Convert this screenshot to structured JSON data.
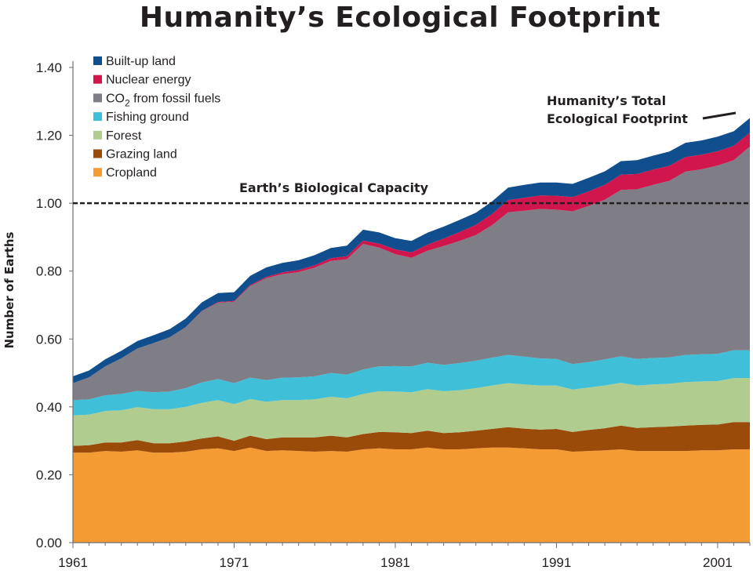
{
  "chart_data": {
    "type": "area",
    "stacked": true,
    "title": "Humanity’s Ecological Footprint",
    "ylabel": "Number of Earths",
    "xlabel": "",
    "xlim": [
      1961,
      2003
    ],
    "ylim": [
      0,
      1.4
    ],
    "x_ticks": [
      1961,
      1971,
      1981,
      1991,
      2001
    ],
    "y_ticks": [
      "0.00",
      "0.20",
      "0.40",
      "0.60",
      "0.80",
      "1.00",
      "1.20",
      "1.40"
    ],
    "grid": false,
    "legend_position": "top-left",
    "x": [
      1961,
      1962,
      1963,
      1964,
      1965,
      1966,
      1967,
      1968,
      1969,
      1970,
      1971,
      1972,
      1973,
      1974,
      1975,
      1976,
      1977,
      1978,
      1979,
      1980,
      1981,
      1982,
      1983,
      1984,
      1985,
      1986,
      1987,
      1988,
      1989,
      1990,
      1991,
      1992,
      1993,
      1994,
      1995,
      1996,
      1997,
      1998,
      1999,
      2000,
      2001,
      2002,
      2003
    ],
    "series": [
      {
        "name": "Cropland",
        "color": "#f59b33",
        "values": [
          0.265,
          0.265,
          0.27,
          0.268,
          0.272,
          0.265,
          0.265,
          0.268,
          0.275,
          0.278,
          0.27,
          0.28,
          0.27,
          0.272,
          0.27,
          0.268,
          0.27,
          0.268,
          0.275,
          0.278,
          0.275,
          0.275,
          0.28,
          0.275,
          0.275,
          0.278,
          0.28,
          0.28,
          0.278,
          0.275,
          0.275,
          0.268,
          0.27,
          0.272,
          0.275,
          0.27,
          0.27,
          0.27,
          0.27,
          0.272,
          0.272,
          0.275,
          0.275
        ]
      },
      {
        "name": "Grazing land",
        "color": "#9a4b0a",
        "values": [
          0.02,
          0.022,
          0.025,
          0.027,
          0.03,
          0.028,
          0.028,
          0.03,
          0.032,
          0.035,
          0.03,
          0.035,
          0.035,
          0.038,
          0.04,
          0.042,
          0.045,
          0.042,
          0.045,
          0.048,
          0.05,
          0.048,
          0.05,
          0.048,
          0.05,
          0.052,
          0.055,
          0.06,
          0.058,
          0.058,
          0.06,
          0.058,
          0.062,
          0.065,
          0.07,
          0.068,
          0.07,
          0.072,
          0.075,
          0.075,
          0.076,
          0.08,
          0.08
        ]
      },
      {
        "name": "Forest",
        "color": "#b0cc8f",
        "values": [
          0.09,
          0.09,
          0.093,
          0.095,
          0.097,
          0.1,
          0.1,
          0.102,
          0.105,
          0.107,
          0.108,
          0.108,
          0.11,
          0.11,
          0.11,
          0.112,
          0.115,
          0.115,
          0.118,
          0.12,
          0.12,
          0.12,
          0.122,
          0.123,
          0.124,
          0.125,
          0.128,
          0.13,
          0.13,
          0.13,
          0.128,
          0.125,
          0.125,
          0.126,
          0.126,
          0.125,
          0.126,
          0.126,
          0.128,
          0.128,
          0.128,
          0.13,
          0.13
        ]
      },
      {
        "name": "Fishing ground",
        "color": "#3fc0d8",
        "values": [
          0.045,
          0.045,
          0.046,
          0.048,
          0.048,
          0.05,
          0.052,
          0.055,
          0.06,
          0.062,
          0.062,
          0.063,
          0.064,
          0.066,
          0.067,
          0.068,
          0.07,
          0.07,
          0.072,
          0.073,
          0.075,
          0.076,
          0.078,
          0.078,
          0.08,
          0.081,
          0.082,
          0.083,
          0.082,
          0.08,
          0.078,
          0.075,
          0.075,
          0.077,
          0.078,
          0.078,
          0.078,
          0.078,
          0.08,
          0.08,
          0.08,
          0.082,
          0.082
        ]
      },
      {
        "name": "CO2 from fossil fuels",
        "color": "#7f7d85",
        "values": [
          0.05,
          0.065,
          0.085,
          0.105,
          0.125,
          0.145,
          0.16,
          0.18,
          0.21,
          0.225,
          0.24,
          0.27,
          0.3,
          0.305,
          0.31,
          0.32,
          0.33,
          0.34,
          0.37,
          0.35,
          0.33,
          0.32,
          0.33,
          0.35,
          0.36,
          0.37,
          0.39,
          0.42,
          0.43,
          0.44,
          0.44,
          0.45,
          0.46,
          0.47,
          0.49,
          0.5,
          0.51,
          0.52,
          0.54,
          0.545,
          0.555,
          0.56,
          0.6
        ]
      },
      {
        "name": "Nuclear energy",
        "color": "#d1164e",
        "values": [
          0,
          0,
          0,
          0,
          0,
          0,
          0,
          0,
          0.001,
          0.002,
          0.002,
          0.003,
          0.004,
          0.005,
          0.006,
          0.007,
          0.008,
          0.009,
          0.01,
          0.012,
          0.014,
          0.016,
          0.018,
          0.022,
          0.026,
          0.03,
          0.033,
          0.036,
          0.038,
          0.04,
          0.041,
          0.042,
          0.043,
          0.044,
          0.045,
          0.045,
          0.045,
          0.044,
          0.043,
          0.043,
          0.042,
          0.042,
          0.041
        ]
      },
      {
        "name": "Built-up land",
        "color": "#114e8e",
        "values": [
          0.02,
          0.02,
          0.021,
          0.022,
          0.022,
          0.023,
          0.024,
          0.025,
          0.025,
          0.026,
          0.026,
          0.027,
          0.028,
          0.028,
          0.029,
          0.03,
          0.03,
          0.031,
          0.032,
          0.033,
          0.033,
          0.034,
          0.035,
          0.035,
          0.036,
          0.036,
          0.037,
          0.037,
          0.038,
          0.038,
          0.039,
          0.039,
          0.04,
          0.04,
          0.04,
          0.041,
          0.041,
          0.042,
          0.042,
          0.042,
          0.043,
          0.043,
          0.043
        ]
      }
    ],
    "legend_entries": [
      {
        "label": "Built-up land",
        "color": "#114e8e"
      },
      {
        "label": "Nuclear energy",
        "color": "#d1164e"
      },
      {
        "label_main": "CO",
        "label_sub": "2",
        "label_rest": " from fossil fuels",
        "color": "#7f7d85"
      },
      {
        "label": "Fishing ground",
        "color": "#3fc0d8"
      },
      {
        "label": "Forest",
        "color": "#b0cc8f"
      },
      {
        "label": "Grazing land",
        "color": "#9a4b0a"
      },
      {
        "label": "Cropland",
        "color": "#f59b33"
      }
    ],
    "reference_line": {
      "label": "Earth’s Biological Capacity",
      "value": 1.0,
      "style": "dashed"
    },
    "annotation": {
      "line1": "Humanity’s Total",
      "line2": "Ecological Footprint"
    }
  }
}
